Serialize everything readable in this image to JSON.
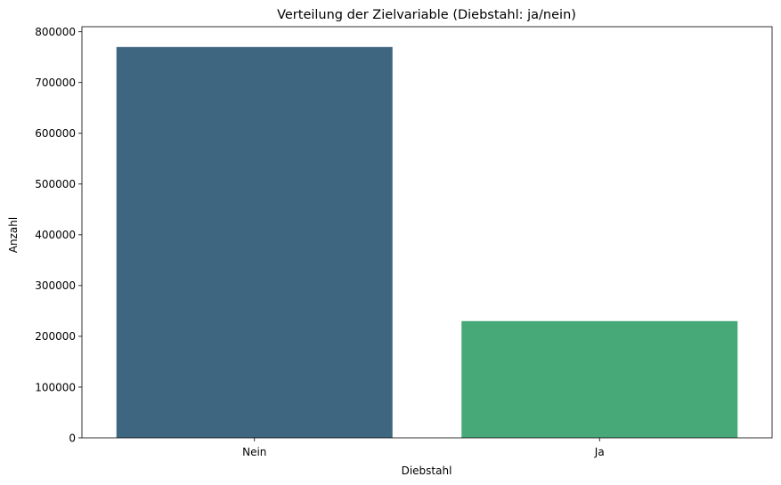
{
  "chart_data": {
    "type": "bar",
    "title": "Verteilung der Zielvariable (Diebstahl: ja/nein)",
    "xlabel": "Diebstahl",
    "ylabel": "Anzahl",
    "categories": [
      "Nein",
      "Ja"
    ],
    "values": [
      770000,
      230000
    ],
    "colors": [
      "#3e6680",
      "#47a878"
    ],
    "ylim": [
      0,
      810000
    ],
    "yticks": [
      0,
      100000,
      200000,
      300000,
      400000,
      500000,
      600000,
      700000,
      800000
    ],
    "ytick_labels": [
      "0",
      "100000",
      "200000",
      "300000",
      "400000",
      "500000",
      "600000",
      "700000",
      "800000"
    ],
    "grid": false,
    "legend": false
  }
}
